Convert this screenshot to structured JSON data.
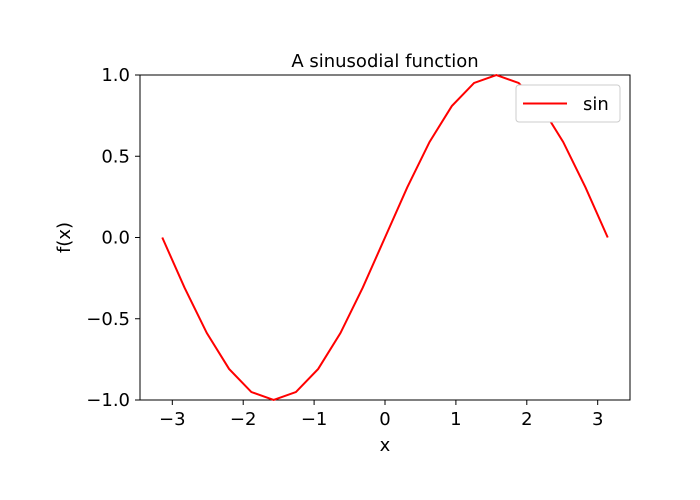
{
  "chart_data": {
    "type": "line",
    "title": "A sinusodial function",
    "xlabel": "x",
    "ylabel": "f(x)",
    "xlim": [
      -3.45575,
      3.45575
    ],
    "ylim": [
      -1.0,
      1.0
    ],
    "x_ticks": [
      -3,
      -2,
      -1,
      0,
      1,
      2,
      3
    ],
    "x_tick_labels": [
      "−3",
      "−2",
      "−1",
      "0",
      "1",
      "2",
      "3"
    ],
    "y_ticks": [
      -1.0,
      -0.5,
      0.0,
      0.5,
      1.0
    ],
    "y_tick_labels": [
      "−1.0",
      "−0.5",
      "0.0",
      "0.5",
      "1.0"
    ],
    "grid": false,
    "legend": {
      "placement": "upper-right"
    },
    "series": [
      {
        "name": "sin",
        "color": "#ff0000",
        "x": [
          -3.1416,
          -2.8274,
          -2.5133,
          -2.1991,
          -1.885,
          -1.5708,
          -1.2566,
          -0.9425,
          -0.6283,
          -0.3142,
          0,
          0.3142,
          0.6283,
          0.9425,
          1.2566,
          1.5708,
          1.885,
          2.1991,
          2.5133,
          2.8274,
          3.1416
        ],
        "y": [
          0.0,
          -0.309,
          -0.5878,
          -0.809,
          -0.9511,
          -1.0,
          -0.9511,
          -0.809,
          -0.5878,
          -0.309,
          0.0,
          0.309,
          0.5878,
          0.809,
          0.9511,
          1.0,
          0.9511,
          0.809,
          0.5878,
          0.309,
          0.0
        ]
      }
    ]
  }
}
